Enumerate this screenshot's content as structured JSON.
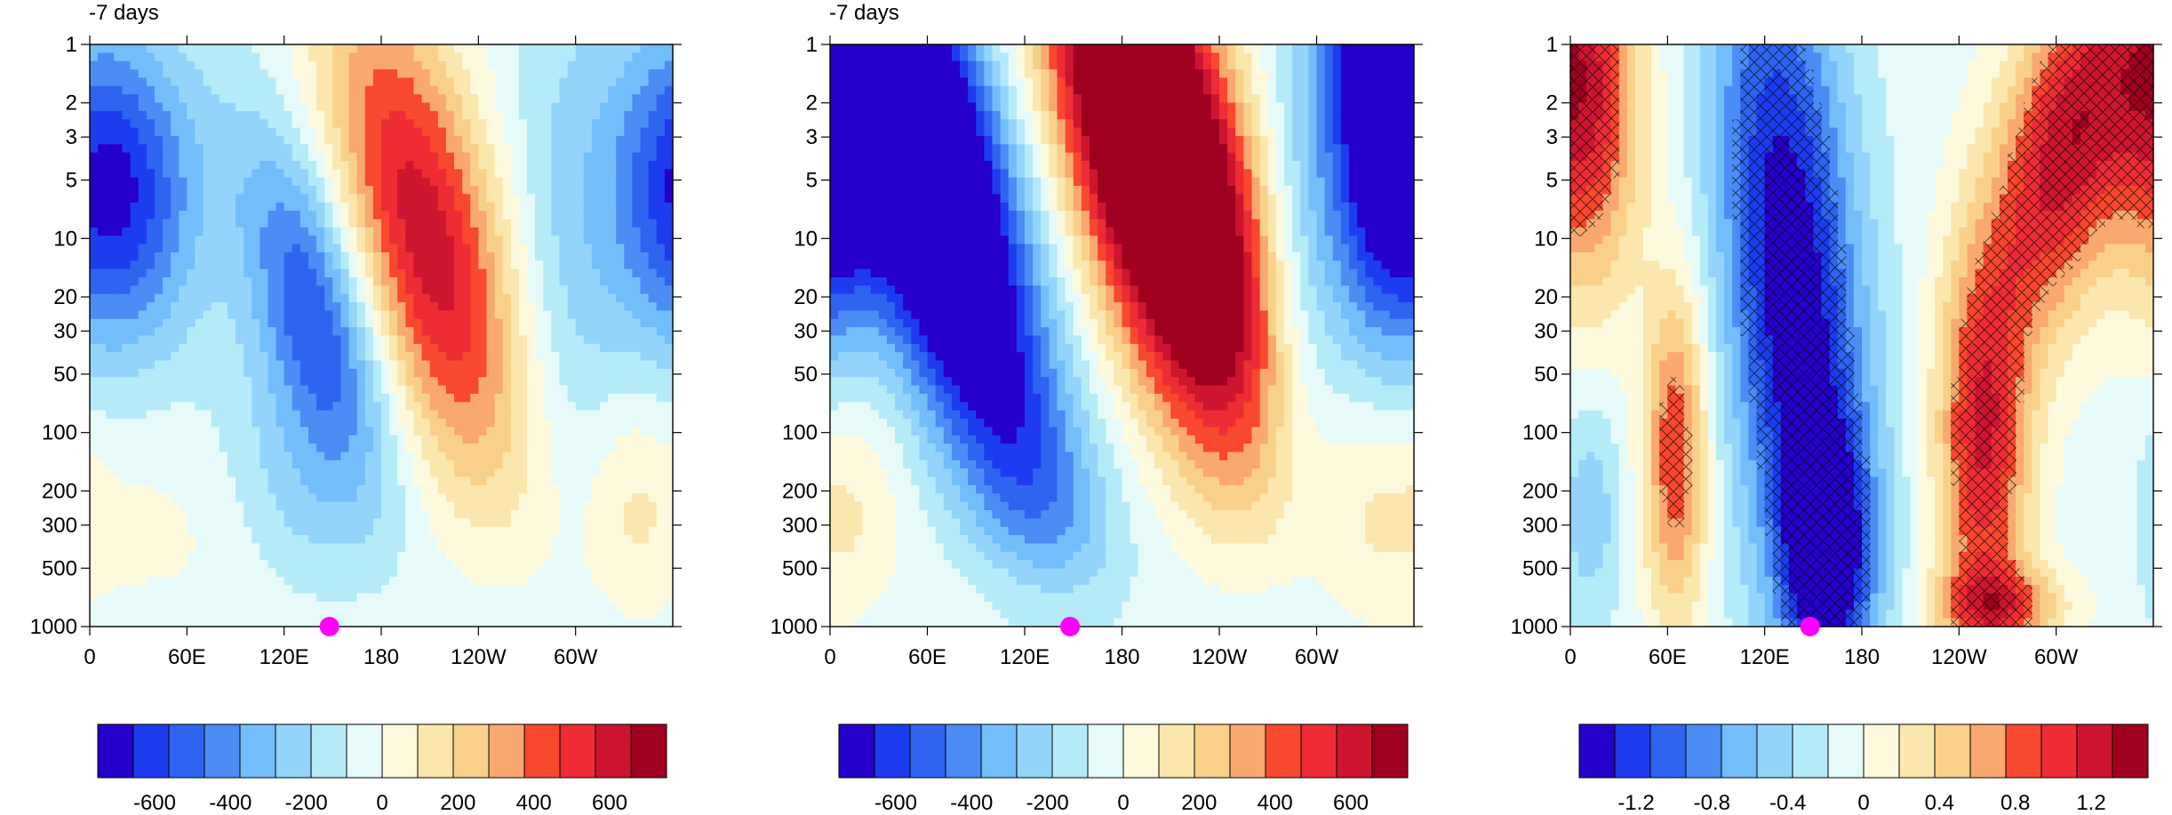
{
  "chart_data": [
    {
      "type": "heatmap",
      "subtitle": "-7 days",
      "y_scale": "log",
      "y_ticks": [
        "1",
        "2",
        "3",
        "5",
        "10",
        "20",
        "30",
        "50",
        "100",
        "200",
        "300",
        "500",
        "1000"
      ],
      "y_tick_values": [
        1,
        2,
        3,
        5,
        10,
        20,
        30,
        50,
        100,
        200,
        300,
        500,
        1000
      ],
      "x_ticks": [
        "0",
        "60E",
        "120E",
        "180",
        "120W",
        "60W"
      ],
      "x_tick_values": [
        0,
        60,
        120,
        180,
        240,
        300
      ],
      "xlim": [
        0,
        360
      ],
      "ylim": [
        1000,
        1
      ],
      "marker": {
        "x": 148,
        "y": 1000,
        "color": "#ff00ff"
      },
      "features": [
        {
          "x": 195,
          "y": 10,
          "value": 700
        },
        {
          "x": 105,
          "y": 30,
          "value": -550
        },
        {
          "x": 45,
          "y": 6,
          "value": -400
        },
        {
          "x": 355,
          "y": 5,
          "value": -400
        },
        {
          "x": 335,
          "y": 250,
          "value": 150
        },
        {
          "x": 50,
          "y": 400,
          "value": 50
        },
        {
          "x": 130,
          "y": 500,
          "value": -100
        }
      ],
      "colorbar": {
        "levels": [
          -750,
          -650,
          -550,
          -450,
          -350,
          -250,
          -150,
          -50,
          50,
          150,
          250,
          350,
          450,
          550,
          650,
          750
        ],
        "tick_labels": [
          "-600",
          "-400",
          "-200",
          "0",
          "200",
          "400",
          "600"
        ],
        "tick_values": [
          -600,
          -400,
          -200,
          0,
          200,
          400,
          600
        ]
      }
    },
    {
      "type": "heatmap",
      "subtitle": "-7 days",
      "y_scale": "log",
      "y_ticks": [
        "1",
        "2",
        "3",
        "5",
        "10",
        "20",
        "30",
        "50",
        "100",
        "200",
        "300",
        "500",
        "1000"
      ],
      "y_tick_values": [
        1,
        2,
        3,
        5,
        10,
        20,
        30,
        50,
        100,
        200,
        300,
        500,
        1000
      ],
      "x_ticks": [
        "0",
        "60E",
        "120E",
        "180",
        "120W",
        "60W"
      ],
      "x_tick_values": [
        0,
        60,
        120,
        180,
        240,
        300
      ],
      "xlim": [
        0,
        360
      ],
      "ylim": [
        1000,
        1
      ],
      "marker": {
        "x": 148,
        "y": 1000,
        "color": "#ff00ff"
      },
      "features": [
        {
          "x": 185,
          "y": 5,
          "value": 1300
        },
        {
          "x": 45,
          "y": 5,
          "value": -1100
        },
        {
          "x": 345,
          "y": 2,
          "value": -1000
        },
        {
          "x": 335,
          "y": 200,
          "value": 150
        },
        {
          "x": 15,
          "y": 250,
          "value": 150
        },
        {
          "x": 110,
          "y": 200,
          "value": -150
        }
      ],
      "colorbar": {
        "levels": [
          -750,
          -650,
          -550,
          -450,
          -350,
          -250,
          -150,
          -50,
          50,
          150,
          250,
          350,
          450,
          550,
          650,
          750
        ],
        "tick_labels": [
          "-600",
          "-400",
          "-200",
          "0",
          "200",
          "400",
          "600"
        ],
        "tick_values": [
          -600,
          -400,
          -200,
          0,
          200,
          400,
          600
        ]
      }
    },
    {
      "type": "heatmap",
      "subtitle": "",
      "y_scale": "log",
      "y_ticks": [
        "1",
        "2",
        "3",
        "5",
        "10",
        "20",
        "30",
        "50",
        "100",
        "200",
        "300",
        "500",
        "1000"
      ],
      "y_tick_values": [
        1,
        2,
        3,
        5,
        10,
        20,
        30,
        50,
        100,
        200,
        300,
        500,
        1000
      ],
      "x_ticks": [
        "0",
        "60E",
        "120E",
        "180",
        "120W",
        "60W"
      ],
      "x_tick_values": [
        0,
        60,
        120,
        180,
        240,
        300
      ],
      "xlim": [
        0,
        360
      ],
      "ylim": [
        1000,
        1
      ],
      "marker": {
        "x": 148,
        "y": 1000,
        "color": "#ff00ff"
      },
      "hatched": "significant regions",
      "features": [
        {
          "x": 140,
          "y": 20,
          "value": -1.5
        },
        {
          "x": 150,
          "y": 300,
          "value": -1.3
        },
        {
          "x": 320,
          "y": 3,
          "value": 1.4
        },
        {
          "x": 12,
          "y": 2,
          "value": 1.2
        },
        {
          "x": 68,
          "y": 150,
          "value": 1.1
        },
        {
          "x": 260,
          "y": 150,
          "value": 1.2
        },
        {
          "x": 10,
          "y": 250,
          "value": -0.4
        }
      ],
      "colorbar": {
        "levels": [
          -1.5,
          -1.3,
          -1.1,
          -0.9,
          -0.7,
          -0.5,
          -0.3,
          -0.1,
          0.1,
          0.3,
          0.5,
          0.7,
          0.9,
          1.1,
          1.3,
          1.5
        ],
        "tick_labels": [
          "-1.2",
          "-0.8",
          "-0.4",
          "0",
          "0.4",
          "0.8",
          "1.2"
        ],
        "tick_values": [
          -1.2,
          -0.8,
          -0.4,
          0,
          0.4,
          0.8,
          1.2
        ]
      }
    }
  ],
  "palette": [
    "#2500c8",
    "#1d3cf0",
    "#2f64f0",
    "#4b8cf5",
    "#73befa",
    "#94d4fb",
    "#b5ebf8",
    "#e6fafa",
    "#fdf9dc",
    "#fbe6ad",
    "#f9d08a",
    "#f9a870",
    "#f8482f",
    "#ee2c35",
    "#ce1530",
    "#a00020"
  ],
  "hatch_color": "#000000"
}
